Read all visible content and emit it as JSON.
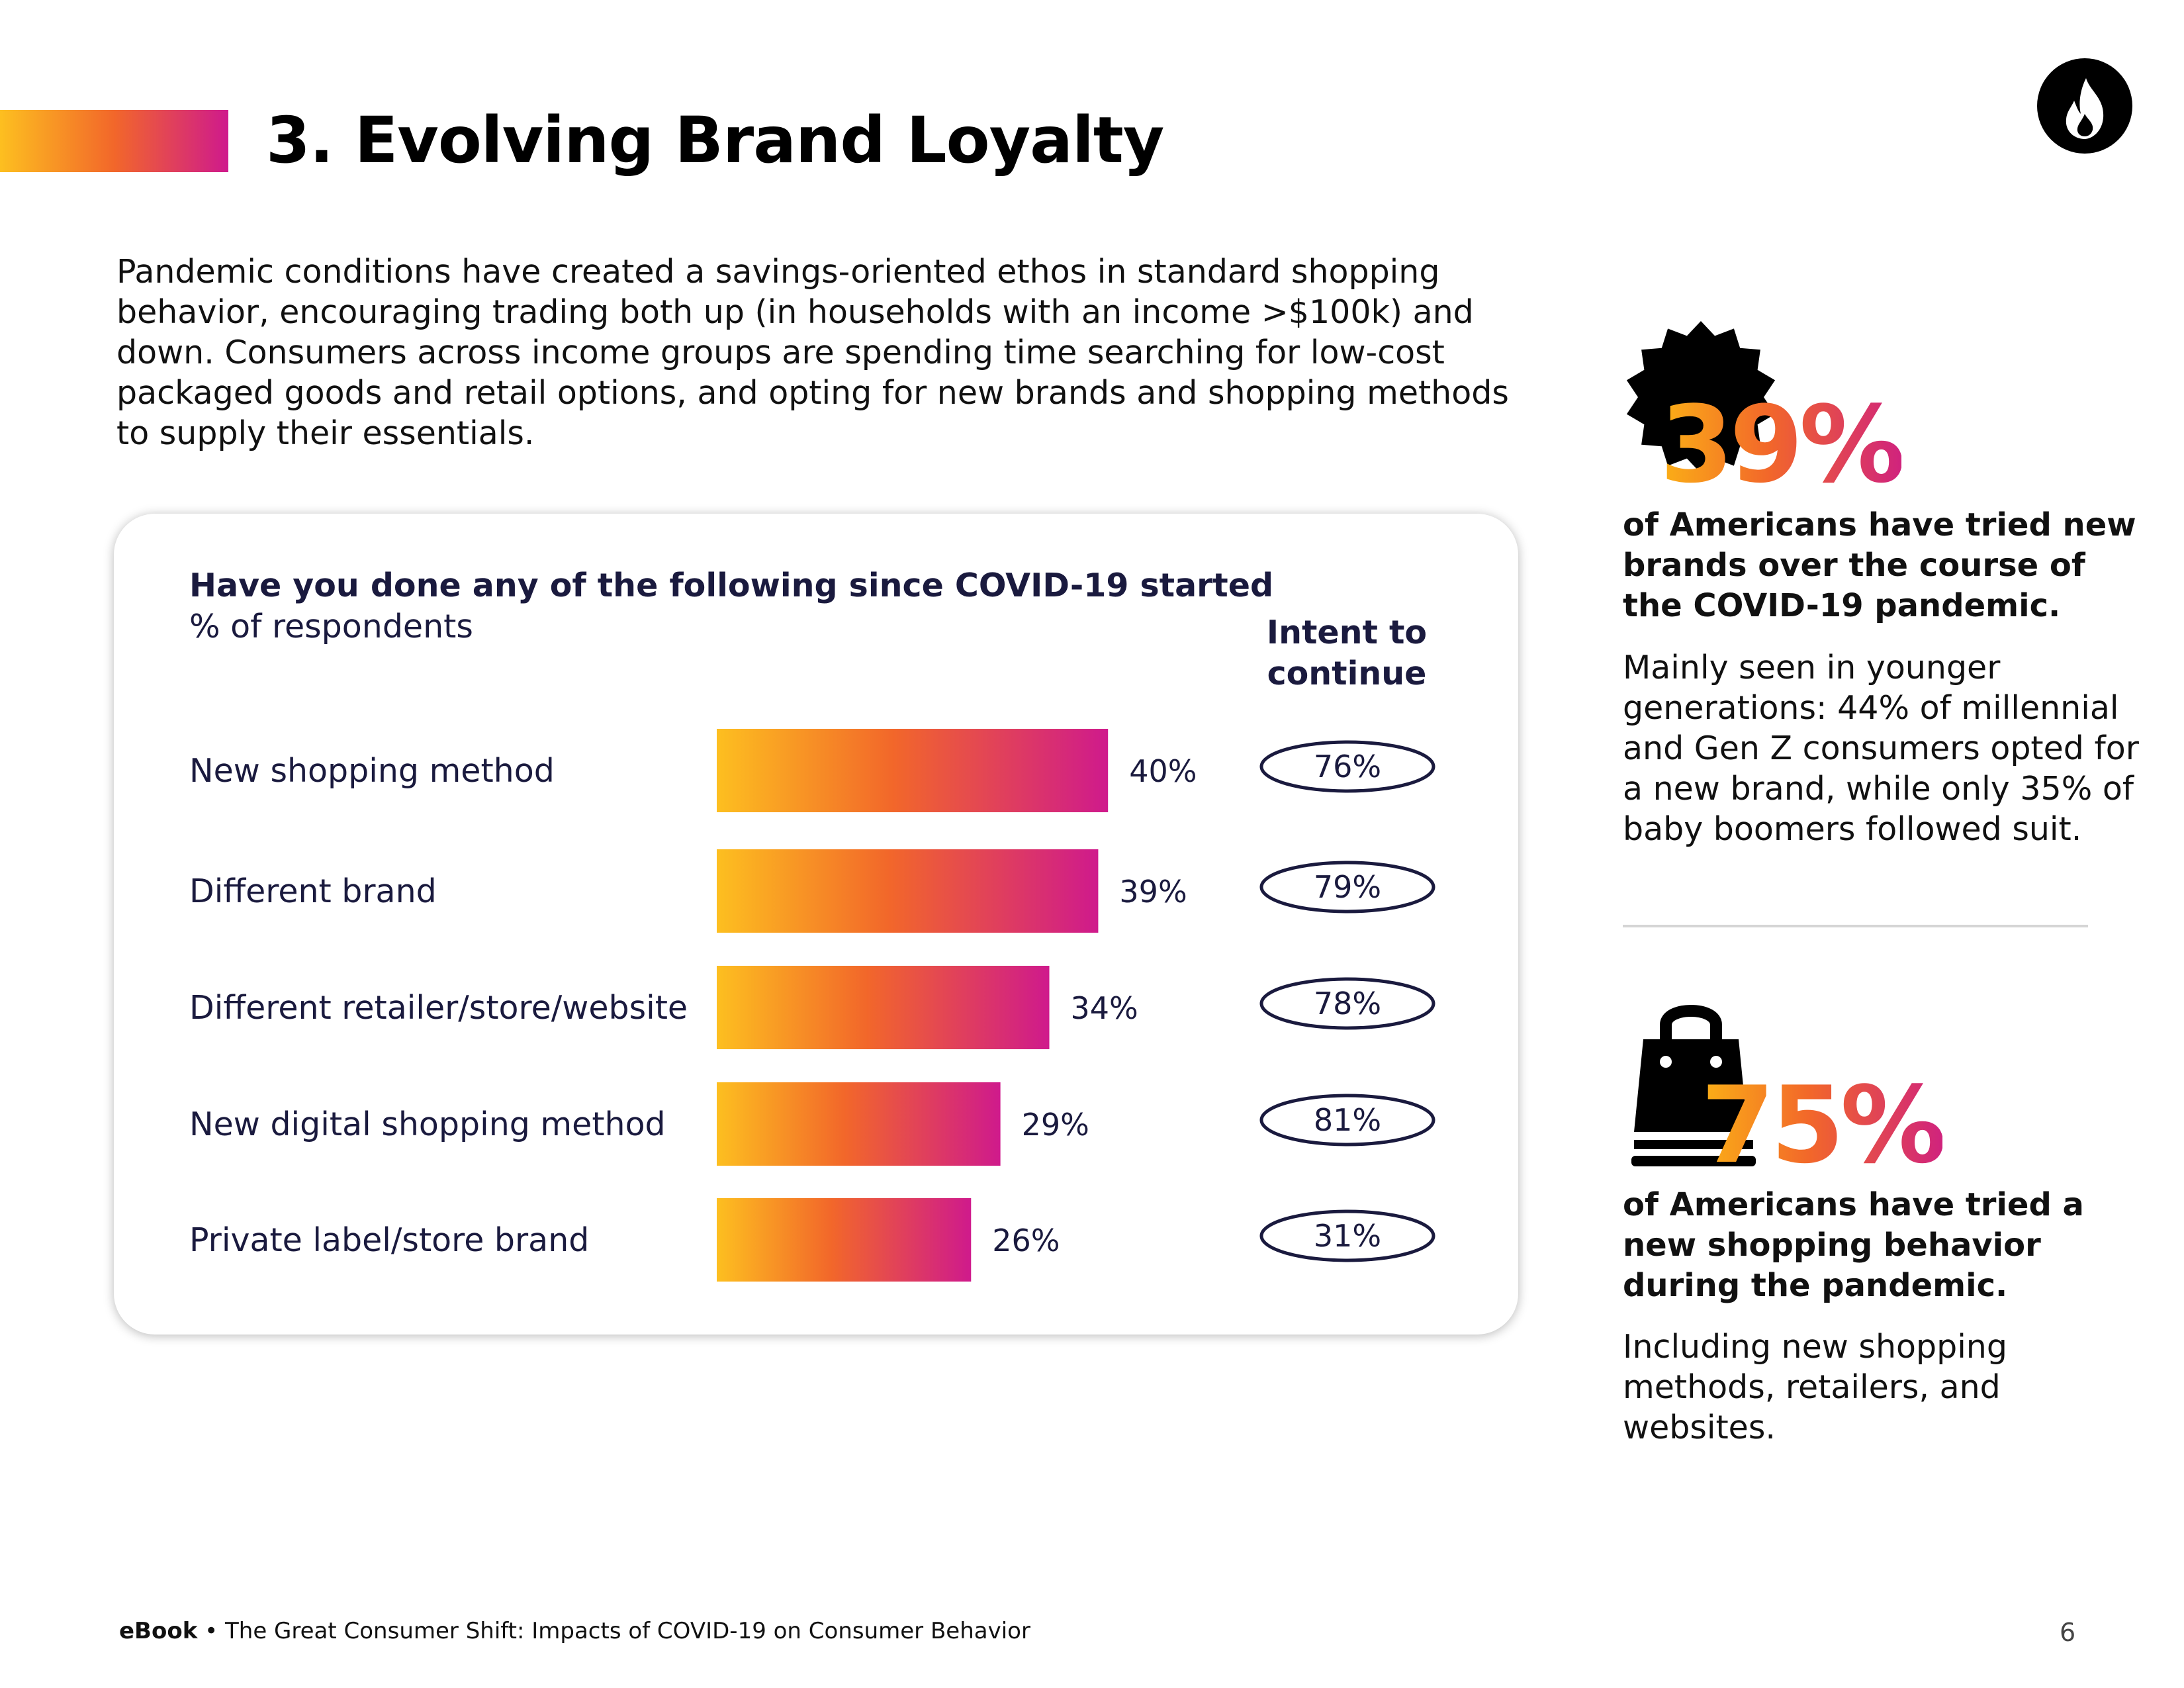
{
  "header": {
    "title": "3. Evolving Brand Loyalty",
    "logo_icon": "flame-icon"
  },
  "intro": {
    "text": "Pandemic conditions have created a savings-oriented ethos in standard shopping behavior, encouraging trading both up (in households with an income >$100k) and down. Consumers across income groups are spending time searching for low-cost packaged goods and retail options, and opting for new brands and shopping methods to supply their essentials."
  },
  "chart": {
    "question": "Have you done any of the following since COVID-19 started",
    "subtitle": "% of respondents",
    "intent_heading": "Intent to continue"
  },
  "chart_data": {
    "type": "bar",
    "orientation": "horizontal",
    "title": "Have you done any of the following since COVID-19 started",
    "subtitle": "% of respondents",
    "categories": [
      "New shopping method",
      "Different brand",
      "Different retailer/store/website",
      "New digital shopping method",
      "Private label/store brand"
    ],
    "values": [
      40,
      39,
      34,
      29,
      26
    ],
    "value_labels": [
      "40%",
      "39%",
      "34%",
      "29%",
      "26%"
    ],
    "intent_to_continue": [
      76,
      79,
      78,
      81,
      31
    ],
    "intent_labels": [
      "76%",
      "79%",
      "78%",
      "81%",
      "31%"
    ],
    "xlim": [
      0,
      100
    ],
    "grid": false,
    "bar_gradient": [
      "#fdbf20",
      "#f2672a",
      "#cf1a8c"
    ]
  },
  "stats": [
    {
      "value": "39%",
      "icon": "badge-burst-icon",
      "heading": "of Americans have tried new brands over the course of the COVID-19 pandemic.",
      "body": "Mainly seen in younger generations: 44% of millennial and Gen Z consumers opted for a new brand, while only 35% of baby boomers followed suit."
    },
    {
      "value": "75%",
      "icon": "shopping-bag-icon",
      "heading": "of Americans have tried a new shopping behavior during the pandemic.",
      "body": "Including new shopping methods, retailers, and websites."
    }
  ],
  "footer": {
    "label": "eBook",
    "bullet": "•",
    "text": "The Great Consumer Shift: Impacts of COVID-19 on Consumer Behavior",
    "page_number": "6"
  },
  "colors": {
    "gradient_start": "#fdbf20",
    "gradient_mid": "#f2672a",
    "gradient_end": "#cf1a8c",
    "navy_text": "#1a1a3e"
  }
}
